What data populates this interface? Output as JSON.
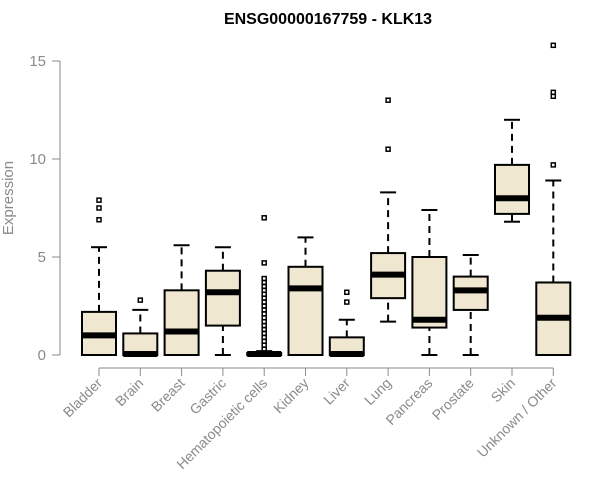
{
  "chart_data": {
    "type": "boxplot",
    "title": "ENSG00000167759 - KLK13",
    "ylabel": "Expression",
    "xlabel": "",
    "ylim": [
      0,
      16
    ],
    "yticks": [
      0,
      5,
      10,
      15
    ],
    "categories": [
      "Bladder",
      "Brain",
      "Breast",
      "Gastric",
      "Hematopoietic cells",
      "Kidney",
      "Liver",
      "Lung",
      "Pancreas",
      "Prostate",
      "Skin",
      "Unknown / Other"
    ],
    "boxes": [
      {
        "category": "Bladder",
        "whisker_low": 0,
        "q1": 0,
        "median": 1.0,
        "q3": 2.2,
        "whisker_high": 5.5,
        "outliers": [
          6.9,
          7.5,
          7.9
        ]
      },
      {
        "category": "Brain",
        "whisker_low": 0,
        "q1": 0,
        "median": 0.05,
        "q3": 1.1,
        "whisker_high": 2.3,
        "outliers": [
          2.8
        ]
      },
      {
        "category": "Breast",
        "whisker_low": 0,
        "q1": 0,
        "median": 1.2,
        "q3": 3.3,
        "whisker_high": 5.6,
        "outliers": []
      },
      {
        "category": "Gastric",
        "whisker_low": 0,
        "q1": 1.5,
        "median": 3.2,
        "q3": 4.3,
        "whisker_high": 5.5,
        "outliers": []
      },
      {
        "category": "Hematopoietic cells",
        "whisker_low": 0,
        "q1": 0,
        "median": 0.05,
        "q3": 0.1,
        "whisker_high": 0.2,
        "outliers": [
          0.3,
          0.5,
          0.7,
          0.9,
          1.1,
          1.3,
          1.5,
          1.7,
          1.9,
          2.1,
          2.3,
          2.5,
          2.7,
          2.9,
          3.1,
          3.3,
          3.5,
          3.7,
          3.9,
          4.7,
          7.0
        ]
      },
      {
        "category": "Kidney",
        "whisker_low": 0,
        "q1": 0,
        "median": 3.4,
        "q3": 4.5,
        "whisker_high": 6.0,
        "outliers": []
      },
      {
        "category": "Liver",
        "whisker_low": 0,
        "q1": 0,
        "median": 0.05,
        "q3": 0.9,
        "whisker_high": 1.8,
        "outliers": [
          2.7,
          3.2
        ]
      },
      {
        "category": "Lung",
        "whisker_low": 1.7,
        "q1": 2.9,
        "median": 4.1,
        "q3": 5.2,
        "whisker_high": 8.3,
        "outliers": [
          10.5,
          13.0
        ]
      },
      {
        "category": "Pancreas",
        "whisker_low": 0,
        "q1": 1.4,
        "median": 1.8,
        "q3": 5.0,
        "whisker_high": 7.4,
        "outliers": []
      },
      {
        "category": "Prostate",
        "whisker_low": 0,
        "q1": 2.3,
        "median": 3.3,
        "q3": 4.0,
        "whisker_high": 5.1,
        "outliers": []
      },
      {
        "category": "Skin",
        "whisker_low": 6.8,
        "q1": 7.2,
        "median": 8.0,
        "q3": 9.7,
        "whisker_high": 12.0,
        "outliers": []
      },
      {
        "category": "Unknown / Other",
        "whisker_low": 0,
        "q1": 0,
        "median": 1.9,
        "q3": 3.7,
        "whisker_high": 8.9,
        "outliers": [
          9.7,
          13.2,
          13.4,
          15.8
        ]
      }
    ],
    "colors": {
      "box_fill": "#efe7cf",
      "axis": "#8a8a8a"
    },
    "grid": false,
    "legend": "none"
  }
}
